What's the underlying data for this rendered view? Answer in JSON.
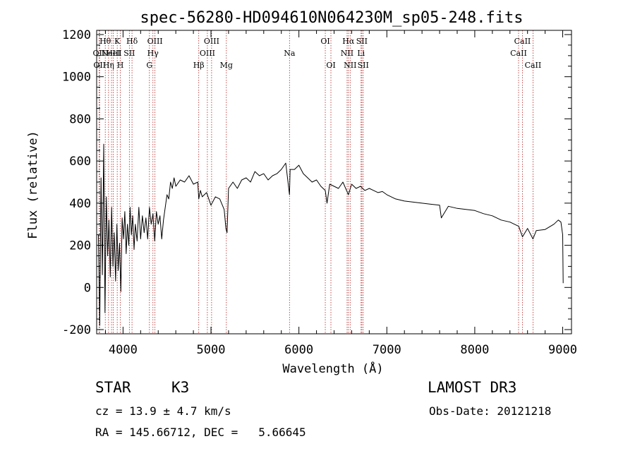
{
  "chart_data": {
    "type": "line",
    "title": "spec-56280-HD094610N064230M_sp05-248.fits",
    "xlabel": "Wavelength (Å)",
    "ylabel": "Flux (relative)",
    "xlim": [
      3700,
      9100
    ],
    "ylim": [
      -220,
      1220
    ],
    "xticks": [
      4000,
      5000,
      6000,
      7000,
      8000,
      9000
    ],
    "yticks": [
      -200,
      0,
      200,
      400,
      600,
      800,
      1000,
      1200
    ],
    "series": [
      {
        "name": "flux",
        "x": [
          3720,
          3735,
          3750,
          3765,
          3780,
          3795,
          3810,
          3825,
          3840,
          3855,
          3870,
          3885,
          3900,
          3915,
          3930,
          3945,
          3960,
          3975,
          3990,
          4005,
          4020,
          4035,
          4050,
          4065,
          4080,
          4095,
          4110,
          4125,
          4140,
          4160,
          4180,
          4200,
          4220,
          4240,
          4260,
          4280,
          4300,
          4320,
          4340,
          4360,
          4380,
          4400,
          4420,
          4440,
          4460,
          4480,
          4500,
          4520,
          4540,
          4560,
          4580,
          4600,
          4650,
          4700,
          4750,
          4800,
          4850,
          4861,
          4880,
          4900,
          4950,
          5000,
          5050,
          5100,
          5150,
          5170,
          5183,
          5200,
          5250,
          5300,
          5350,
          5400,
          5450,
          5500,
          5550,
          5600,
          5650,
          5700,
          5750,
          5800,
          5850,
          5893,
          5900,
          5950,
          6000,
          6050,
          6100,
          6150,
          6200,
          6250,
          6300,
          6320,
          6350,
          6400,
          6450,
          6500,
          6563,
          6600,
          6650,
          6700,
          6750,
          6800,
          6850,
          6900,
          6950,
          7000,
          7100,
          7200,
          7300,
          7400,
          7500,
          7600,
          7620,
          7700,
          7800,
          7900,
          8000,
          8100,
          8200,
          8300,
          8400,
          8500,
          8542,
          8600,
          8662,
          8700,
          8800,
          8900,
          8950,
          8980,
          9000,
          9005
        ],
        "y": [
          250,
          -180,
          520,
          60,
          680,
          -120,
          430,
          150,
          320,
          50,
          380,
          100,
          260,
          30,
          300,
          80,
          210,
          -20,
          330,
          230,
          360,
          160,
          300,
          200,
          380,
          250,
          340,
          180,
          300,
          220,
          380,
          230,
          340,
          260,
          330,
          230,
          380,
          300,
          350,
          220,
          360,
          300,
          340,
          230,
          320,
          380,
          440,
          420,
          500,
          470,
          520,
          480,
          510,
          500,
          530,
          490,
          500,
          420,
          460,
          430,
          450,
          390,
          430,
          420,
          370,
          280,
          260,
          470,
          500,
          470,
          510,
          520,
          500,
          550,
          530,
          540,
          510,
          530,
          540,
          560,
          590,
          440,
          560,
          560,
          580,
          540,
          520,
          500,
          510,
          480,
          460,
          400,
          490,
          480,
          470,
          500,
          440,
          490,
          470,
          480,
          460,
          470,
          460,
          450,
          455,
          440,
          420,
          410,
          405,
          400,
          395,
          390,
          330,
          385,
          375,
          370,
          365,
          350,
          340,
          320,
          310,
          290,
          240,
          280,
          230,
          270,
          275,
          300,
          320,
          310,
          250,
          20
        ],
        "color": "#000000"
      }
    ],
    "spectral_lines": [
      {
        "wl": 3727,
        "label": "OII",
        "row": 2
      },
      {
        "wl": 3734,
        "label": "OII",
        "row": 3
      },
      {
        "wl": 3798,
        "label": "Hθ",
        "row": 1
      },
      {
        "wl": 3835,
        "label": "Hη",
        "row": 3
      },
      {
        "wl": 3869,
        "label": "NeIII",
        "row": 2
      },
      {
        "wl": 3889,
        "label": "HeI",
        "row": 2
      },
      {
        "wl": 3934,
        "label": "K",
        "row": 1
      },
      {
        "wl": 3969,
        "label": "H",
        "row": 3
      },
      {
        "wl": 4072,
        "label": "SII",
        "row": 2
      },
      {
        "wl": 4102,
        "label": "Hδ",
        "row": 1
      },
      {
        "wl": 4300,
        "label": "G",
        "row": 3
      },
      {
        "wl": 4340,
        "label": "Hγ",
        "row": 2
      },
      {
        "wl": 4363,
        "label": "OIII",
        "row": 1
      },
      {
        "wl": 4861,
        "label": "Hβ",
        "row": 3
      },
      {
        "wl": 4959,
        "label": "OIII",
        "row": 2
      },
      {
        "wl": 5007,
        "label": "OIII",
        "row": 1
      },
      {
        "wl": 5175,
        "label": "Mg",
        "row": 3
      },
      {
        "wl": 5893,
        "label": "Na",
        "row": 2
      },
      {
        "wl": 6300,
        "label": "OI",
        "row": 1
      },
      {
        "wl": 6364,
        "label": "OI",
        "row": 3
      },
      {
        "wl": 6548,
        "label": "NII",
        "row": 2
      },
      {
        "wl": 6563,
        "label": "Hα",
        "row": 1
      },
      {
        "wl": 6583,
        "label": "NII",
        "row": 3
      },
      {
        "wl": 6707,
        "label": "Li",
        "row": 2
      },
      {
        "wl": 6716,
        "label": "SII",
        "row": 1
      },
      {
        "wl": 6731,
        "label": "SII",
        "row": 3
      },
      {
        "wl": 8498,
        "label": "CaII",
        "row": 2
      },
      {
        "wl": 8542,
        "label": "CaII",
        "row": 1
      },
      {
        "wl": 8662,
        "label": "CaII",
        "row": 3
      }
    ]
  },
  "info": {
    "class_label": "STAR",
    "subclass": "K3",
    "survey": "LAMOST DR3",
    "cz_text": "cz = 13.9 ± 4.7 km/s",
    "obs_date": "Obs-Date: 20121218",
    "radec_text": "RA = 145.66712, DEC =   5.66645"
  }
}
